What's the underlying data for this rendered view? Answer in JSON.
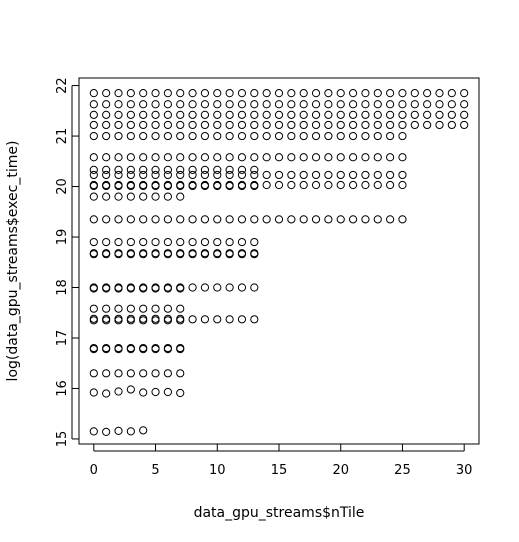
{
  "chart_data": {
    "type": "scatter",
    "title": "",
    "xlabel": "data_gpu_streams$nTile",
    "ylabel": "log(data_gpu_streams$exec_time)",
    "xlim": [
      -1.2,
      31.2
    ],
    "ylim": [
      14.9,
      22.15
    ],
    "x_ticks": [
      0,
      5,
      10,
      15,
      20,
      25,
      30
    ],
    "y_ticks": [
      15,
      16,
      17,
      18,
      19,
      20,
      21,
      22
    ],
    "grid": false,
    "legend": "none",
    "marker": "open-circle",
    "groups": [
      {
        "y": [
          15.15
        ],
        "x_from": 0,
        "x_to": 4,
        "y_jitter": [
          15.15,
          15.14,
          15.16,
          15.15,
          15.17
        ]
      },
      {
        "y": [
          15.92
        ],
        "x_from": 0,
        "x_to": 7,
        "y_jitter": [
          15.92,
          15.9,
          15.94,
          15.98,
          15.92,
          15.93,
          15.93,
          15.91
        ]
      },
      {
        "y": [
          16.3
        ],
        "x_from": 0,
        "x_to": 7
      },
      {
        "y": [
          16.8,
          16.78
        ],
        "x_from": 0,
        "x_to": 7
      },
      {
        "y": [
          17.38,
          17.35
        ],
        "x_from": 0,
        "x_to": 7
      },
      {
        "y": [
          17.37
        ],
        "x_from": 8,
        "x_to": 13
      },
      {
        "y": [
          17.58
        ],
        "x_from": 0,
        "x_to": 7
      },
      {
        "y": [
          18.0,
          17.98
        ],
        "x_from": 0,
        "x_to": 7
      },
      {
        "y": [
          18.0
        ],
        "x_from": 8,
        "x_to": 13
      },
      {
        "y": [
          18.68,
          18.66
        ],
        "x_from": 0,
        "x_to": 13
      },
      {
        "y": [
          18.9
        ],
        "x_from": 0,
        "x_to": 13
      },
      {
        "y": [
          19.35
        ],
        "x_from": 0,
        "x_to": 25
      },
      {
        "y": [
          19.8
        ],
        "x_from": 0,
        "x_to": 7
      },
      {
        "y": [
          20.03,
          20.01
        ],
        "x_from": 0,
        "x_to": 13
      },
      {
        "y": [
          20.03
        ],
        "x_from": 14,
        "x_to": 25
      },
      {
        "y": [
          20.23
        ],
        "x_from": 0,
        "x_to": 25
      },
      {
        "y": [
          20.33
        ],
        "x_from": 0,
        "x_to": 13
      },
      {
        "y": [
          20.58
        ],
        "x_from": 0,
        "x_to": 25
      },
      {
        "y": [
          21.0
        ],
        "x_from": 0,
        "x_to": 25
      },
      {
        "y": [
          21.22
        ],
        "x_from": 0,
        "x_to": 30
      },
      {
        "y": [
          21.42
        ],
        "x_from": 0,
        "x_to": 30
      },
      {
        "y": [
          21.63
        ],
        "x_from": 0,
        "x_to": 30
      },
      {
        "y": [
          21.85
        ],
        "x_from": 0,
        "x_to": 30
      }
    ]
  }
}
